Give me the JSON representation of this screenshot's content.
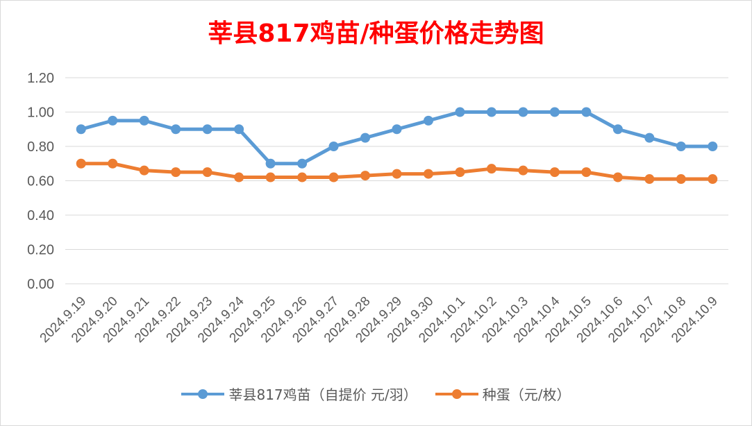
{
  "chart_data": {
    "type": "line",
    "title": "莘县817鸡苗/种蛋价格走势图",
    "categories": [
      "2024.9.19",
      "2024.9.20",
      "2024.9.21",
      "2024.9.22",
      "2024.9.23",
      "2024.9.24",
      "2024.9.25",
      "2024.9.26",
      "2024.9.27",
      "2024.9.28",
      "2024.9.29",
      "2024.9.30",
      "2024.10.1",
      "2024.10.2",
      "2024.10.3",
      "2024.10.4",
      "2024.10.5",
      "2024.10.6",
      "2024.10.7",
      "2024.10.8",
      "2024.10.9"
    ],
    "series": [
      {
        "name": "莘县817鸡苗（自提价 元/羽）",
        "color": "#5b9bd5",
        "values": [
          0.9,
          0.95,
          0.95,
          0.9,
          0.9,
          0.9,
          0.7,
          0.7,
          0.8,
          0.85,
          0.9,
          0.95,
          1.0,
          1.0,
          1.0,
          1.0,
          1.0,
          0.9,
          0.85,
          0.8,
          0.8
        ]
      },
      {
        "name": "种蛋（元/枚）",
        "color": "#ed7d31",
        "values": [
          0.7,
          0.7,
          0.66,
          0.65,
          0.65,
          0.62,
          0.62,
          0.62,
          0.62,
          0.63,
          0.64,
          0.64,
          0.65,
          0.67,
          0.66,
          0.65,
          0.65,
          0.62,
          0.61,
          0.61,
          0.61
        ]
      }
    ],
    "ylim": [
      0,
      1.2
    ],
    "yticks": [
      "0.00",
      "0.20",
      "0.40",
      "0.60",
      "0.80",
      "1.00",
      "1.20"
    ],
    "grid": true,
    "legend": "bottom"
  }
}
